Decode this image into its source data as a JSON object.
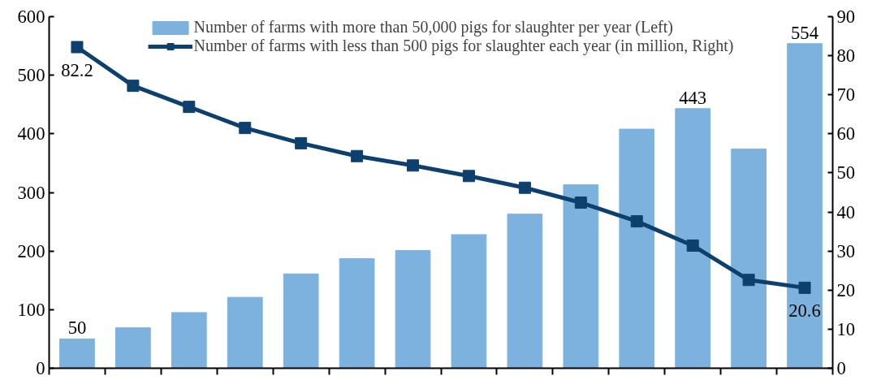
{
  "chart_data": {
    "type": "bar",
    "categories": [
      null,
      null,
      null,
      null,
      null,
      null,
      null,
      null,
      null,
      null,
      null,
      null,
      null,
      null
    ],
    "series": [
      {
        "name": "Number of farms with more than 50,000 pigs for slaughter per year (Left)",
        "color": "#7db2df",
        "values": [
          50,
          69,
          95,
          121,
          161,
          187,
          201,
          228,
          263,
          313,
          408,
          443,
          374,
          554
        ],
        "value_labels": [
          "50",
          null,
          null,
          null,
          null,
          null,
          null,
          null,
          null,
          null,
          null,
          "443",
          null,
          "554"
        ]
      },
      {
        "name": "Number of farms with less than 500 pigs for slaughter each year (in million, Right)",
        "type": "line",
        "axis": "y2",
        "color": "#0e406e",
        "marker": "square",
        "values": [
          82.2,
          72.3,
          66.9,
          61.5,
          57.6,
          54.3,
          51.9,
          49.2,
          46.2,
          42.4,
          37.6,
          31.4,
          22.6,
          20.6
        ],
        "value_labels": [
          "82.2",
          null,
          null,
          null,
          null,
          null,
          null,
          null,
          null,
          null,
          null,
          null,
          null,
          "20.6"
        ]
      }
    ],
    "ylim": [
      0,
      600
    ],
    "yticks": [
      0,
      100,
      200,
      300,
      400,
      500,
      600
    ],
    "y2lim": [
      0,
      90
    ],
    "y2ticks": [
      0,
      10,
      20,
      30,
      40,
      50,
      60,
      70,
      80,
      90
    ],
    "grid": false,
    "legend": "top",
    "line_style": "solid"
  }
}
